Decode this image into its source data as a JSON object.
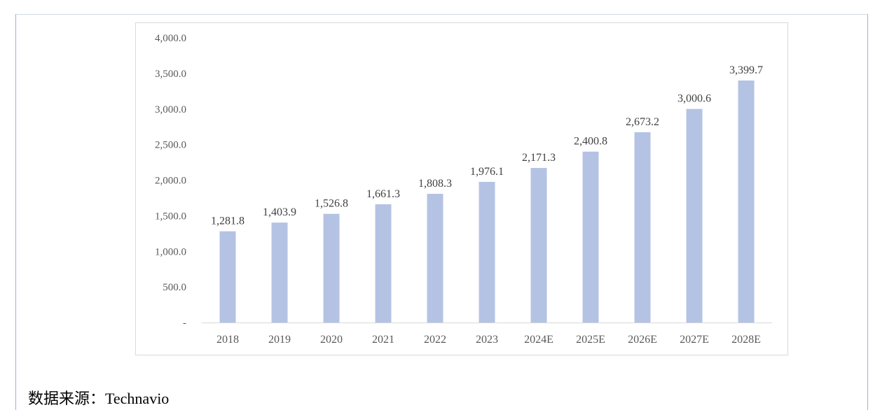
{
  "chart_data": {
    "type": "bar",
    "categories": [
      "2018",
      "2019",
      "2020",
      "2021",
      "2022",
      "2023",
      "2024E",
      "2025E",
      "2026E",
      "2027E",
      "2028E"
    ],
    "values": [
      1281.8,
      1403.9,
      1526.8,
      1661.3,
      1808.3,
      1976.1,
      2171.3,
      2400.8,
      2673.2,
      3000.6,
      3399.7
    ],
    "data_labels": [
      "1,281.8",
      "1,403.9",
      "1,526.8",
      "1,661.3",
      "1,808.3",
      "1,976.1",
      "2,171.3",
      "2,400.8",
      "2,673.2",
      "3,000.6",
      "3,399.7"
    ],
    "yticks": [
      0,
      500,
      1000,
      1500,
      2000,
      2500,
      3000,
      3500,
      4000
    ],
    "ytick_labels": [
      "-",
      "500.0",
      "1,000.0",
      "1,500.0",
      "2,000.0",
      "2,500.0",
      "3,000.0",
      "3,500.0",
      "4,000.0"
    ],
    "ylim": [
      0,
      4000
    ],
    "bar_color": "#b4c3e4",
    "grid": false,
    "legend": false,
    "title": "",
    "xlabel": "",
    "ylabel": ""
  },
  "source": {
    "text": "数据来源：Technavio"
  }
}
